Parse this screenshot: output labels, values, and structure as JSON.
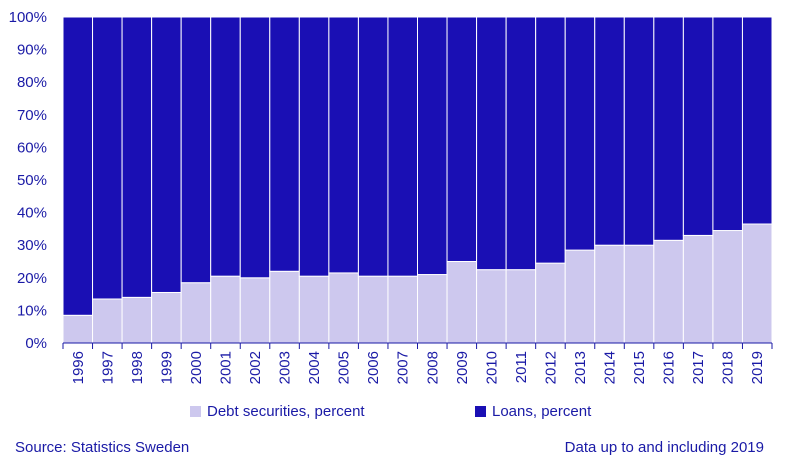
{
  "colors": {
    "text": "#1a1aa6",
    "loans": "#1a0fb4",
    "debt": "#cdc8ee",
    "axis": "#1a1aa6"
  },
  "chart_data": {
    "type": "bar",
    "stacked": true,
    "categories": [
      "1996",
      "1997",
      "1998",
      "1999",
      "2000",
      "2001",
      "2002",
      "2003",
      "2004",
      "2005",
      "2006",
      "2007",
      "2008",
      "2009",
      "2010",
      "2011",
      "2012",
      "2013",
      "2014",
      "2015",
      "2016",
      "2017",
      "2018",
      "2019"
    ],
    "series": [
      {
        "name": "Debt securities, percent",
        "values": [
          8.5,
          13.5,
          14,
          15.5,
          18.5,
          20.5,
          20,
          22,
          20.5,
          21.5,
          20.5,
          20.5,
          21,
          25,
          22.5,
          22.5,
          24.5,
          28.5,
          30,
          30,
          31.5,
          33,
          34.5,
          36.5
        ]
      },
      {
        "name": "Loans, percent",
        "values": [
          91.5,
          86.5,
          86,
          84.5,
          81.5,
          79.5,
          80,
          78,
          79.5,
          78.5,
          79.5,
          79.5,
          79,
          75,
          77.5,
          77.5,
          75.5,
          71.5,
          70,
          70,
          68.5,
          67,
          65.5,
          63.5
        ]
      }
    ],
    "yticks": [
      "0%",
      "10%",
      "20%",
      "30%",
      "40%",
      "50%",
      "60%",
      "70%",
      "80%",
      "90%",
      "100%"
    ],
    "ylim": [
      0,
      100
    ],
    "legend_position": "bottom"
  },
  "footer": {
    "source": "Source:  Statistics Sweden",
    "note": "Data up to and including 2019"
  }
}
